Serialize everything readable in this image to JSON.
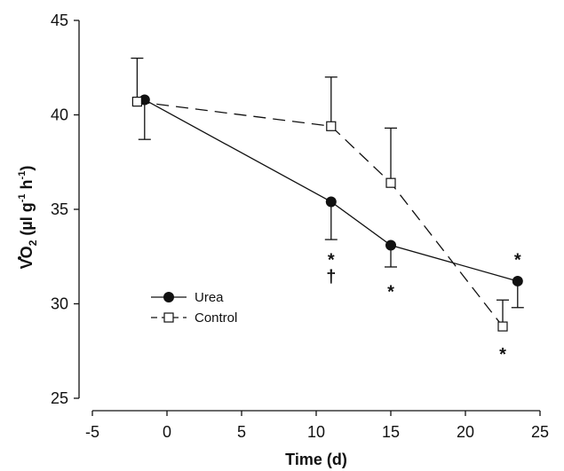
{
  "chart_data": {
    "type": "line",
    "title": "",
    "xlabel": "Time (d)",
    "ylabel": {
      "main": "V",
      "o": "O",
      "sub": "2",
      "units_open": " (µl g",
      "sup1": "-1",
      "units_mid": " h",
      "sup2": "-1",
      "units_close": ")"
    },
    "xlim": [
      -5,
      25
    ],
    "ylim": [
      25,
      45
    ],
    "xticks": [
      "-5",
      "0",
      "5",
      "10",
      "15",
      "20",
      "25"
    ],
    "xtick_values": [
      -5,
      0,
      5,
      10,
      15,
      20,
      25
    ],
    "yticks": [
      "25",
      "30",
      "35",
      "40",
      "45"
    ],
    "ytick_values": [
      25,
      30,
      35,
      40,
      45
    ],
    "grid": false,
    "legend_position": "lower-left",
    "series": [
      {
        "name": "Urea",
        "marker": "filled-circle",
        "line": "solid",
        "x": [
          -1.5,
          11,
          15,
          23.5
        ],
        "y": [
          40.8,
          35.4,
          33.1,
          31.2
        ],
        "error_dir": "down",
        "error": [
          2.1,
          2.0,
          1.15,
          1.4
        ]
      },
      {
        "name": "Control",
        "marker": "open-square",
        "line": "dashed",
        "x": [
          -2,
          11,
          15,
          22.5
        ],
        "y": [
          40.7,
          39.4,
          36.4,
          28.8
        ],
        "error_dir": "up",
        "error": [
          2.3,
          2.6,
          2.9,
          1.4
        ]
      }
    ],
    "annotations": [
      {
        "text": "*",
        "x": 11,
        "y": 32.4
      },
      {
        "text": "†",
        "x": 11,
        "y": 31.5
      },
      {
        "text": "*",
        "x": 15,
        "y": 30.7
      },
      {
        "text": "*",
        "x": 23.5,
        "y": 32.4
      },
      {
        "text": "*",
        "x": 22.5,
        "y": 27.4
      }
    ]
  },
  "colors": {
    "ink": "#111111",
    "marker_fill": "#111111",
    "open_fill": "#ffffff"
  }
}
